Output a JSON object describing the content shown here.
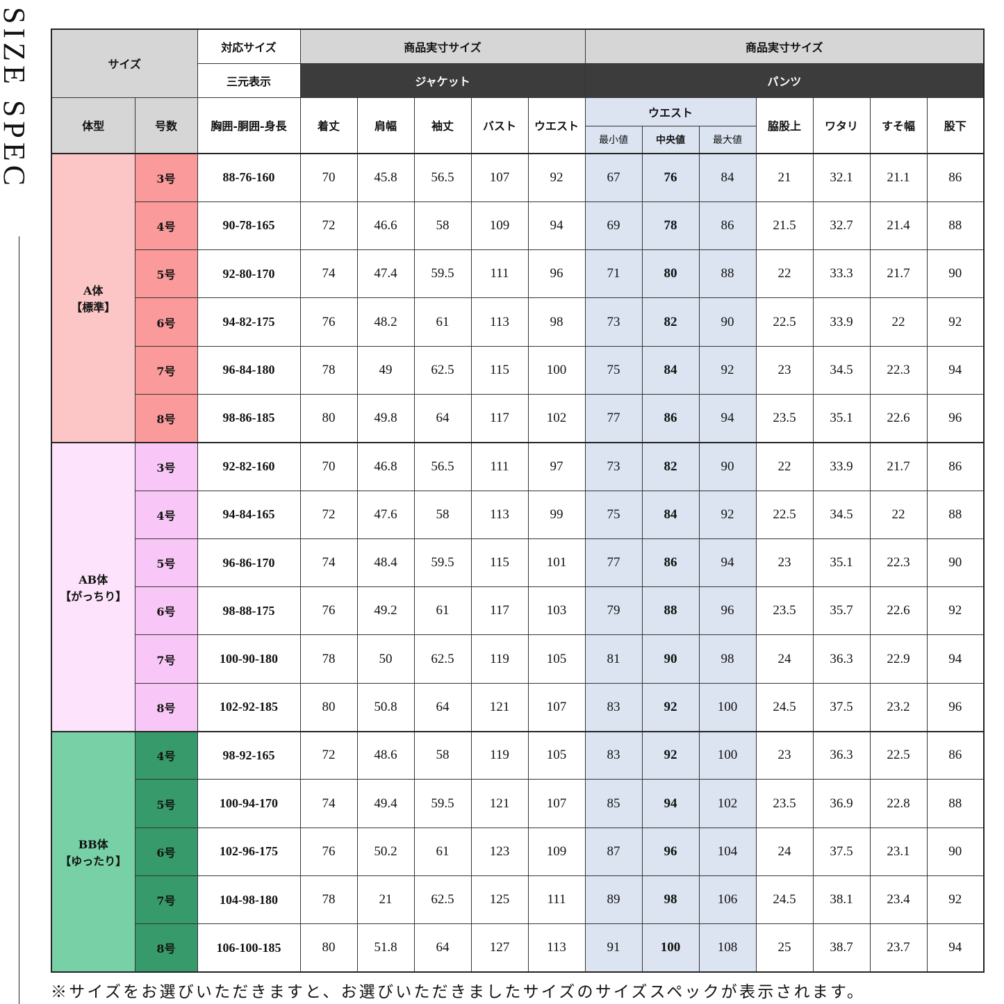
{
  "side_title": "SIZE SPEC",
  "header": {
    "size": "サイズ",
    "compat_size": "対応サイズ",
    "three_dim": "三元表示",
    "actual_size_jacket": "商品実寸サイズ",
    "actual_size_pants": "商品実寸サイズ",
    "jacket": "ジャケット",
    "pants": "パンツ",
    "body_type": "体型",
    "size_no": "号数",
    "chest_waist_height": "胸囲-胴囲-身長",
    "jacket_cols": [
      "着丈",
      "肩幅",
      "袖丈",
      "バスト",
      "ウエスト"
    ],
    "waist": "ウエスト",
    "waist_sub": [
      "最小値",
      "中央値",
      "最大値"
    ],
    "pants_cols": [
      "脇股上",
      "ワタリ",
      "すそ幅",
      "股下"
    ]
  },
  "colors": {
    "header_gray": "#d6d6d6",
    "header_dark": "#3c3c3c",
    "waist_blue": "#dce4f2"
  },
  "groups": [
    {
      "name": "A体",
      "sub": "【標準】",
      "bg": "#fcc6c6",
      "size_bg": "#fa9a9a",
      "rows": [
        {
          "size": "3号",
          "three": "88-76-160",
          "v": [
            "70",
            "45.8",
            "56.5",
            "107",
            "92",
            "67",
            "76",
            "84",
            "21",
            "32.1",
            "21.1",
            "86"
          ]
        },
        {
          "size": "4号",
          "three": "90-78-165",
          "v": [
            "72",
            "46.6",
            "58",
            "109",
            "94",
            "69",
            "78",
            "86",
            "21.5",
            "32.7",
            "21.4",
            "88"
          ]
        },
        {
          "size": "5号",
          "three": "92-80-170",
          "v": [
            "74",
            "47.4",
            "59.5",
            "111",
            "96",
            "71",
            "80",
            "88",
            "22",
            "33.3",
            "21.7",
            "90"
          ]
        },
        {
          "size": "6号",
          "three": "94-82-175",
          "v": [
            "76",
            "48.2",
            "61",
            "113",
            "98",
            "73",
            "82",
            "90",
            "22.5",
            "33.9",
            "22",
            "92"
          ]
        },
        {
          "size": "7号",
          "three": "96-84-180",
          "v": [
            "78",
            "49",
            "62.5",
            "115",
            "100",
            "75",
            "84",
            "92",
            "23",
            "34.5",
            "22.3",
            "94"
          ]
        },
        {
          "size": "8号",
          "three": "98-86-185",
          "v": [
            "80",
            "49.8",
            "64",
            "117",
            "102",
            "77",
            "86",
            "94",
            "23.5",
            "35.1",
            "22.6",
            "96"
          ]
        }
      ]
    },
    {
      "name": "AB体",
      "sub": "【がっちり】",
      "bg": "#fde3fb",
      "size_bg": "#f9c7f7",
      "rows": [
        {
          "size": "3号",
          "three": "92-82-160",
          "v": [
            "70",
            "46.8",
            "56.5",
            "111",
            "97",
            "73",
            "82",
            "90",
            "22",
            "33.9",
            "21.7",
            "86"
          ]
        },
        {
          "size": "4号",
          "three": "94-84-165",
          "v": [
            "72",
            "47.6",
            "58",
            "113",
            "99",
            "75",
            "84",
            "92",
            "22.5",
            "34.5",
            "22",
            "88"
          ]
        },
        {
          "size": "5号",
          "three": "96-86-170",
          "v": [
            "74",
            "48.4",
            "59.5",
            "115",
            "101",
            "77",
            "86",
            "94",
            "23",
            "35.1",
            "22.3",
            "90"
          ]
        },
        {
          "size": "6号",
          "three": "98-88-175",
          "v": [
            "76",
            "49.2",
            "61",
            "117",
            "103",
            "79",
            "88",
            "96",
            "23.5",
            "35.7",
            "22.6",
            "92"
          ]
        },
        {
          "size": "7号",
          "three": "100-90-180",
          "v": [
            "78",
            "50",
            "62.5",
            "119",
            "105",
            "81",
            "90",
            "98",
            "24",
            "36.3",
            "22.9",
            "94"
          ]
        },
        {
          "size": "8号",
          "three": "102-92-185",
          "v": [
            "80",
            "50.8",
            "64",
            "121",
            "107",
            "83",
            "92",
            "100",
            "24.5",
            "37.5",
            "23.2",
            "96"
          ]
        }
      ]
    },
    {
      "name": "BB体",
      "sub": "【ゆったり】",
      "bg": "#78d1a6",
      "size_bg": "#379a6a",
      "rows": [
        {
          "size": "4号",
          "three": "98-92-165",
          "v": [
            "72",
            "48.6",
            "58",
            "119",
            "105",
            "83",
            "92",
            "100",
            "23",
            "36.3",
            "22.5",
            "86"
          ]
        },
        {
          "size": "5号",
          "three": "100-94-170",
          "v": [
            "74",
            "49.4",
            "59.5",
            "121",
            "107",
            "85",
            "94",
            "102",
            "23.5",
            "36.9",
            "22.8",
            "88"
          ]
        },
        {
          "size": "6号",
          "three": "102-96-175",
          "v": [
            "76",
            "50.2",
            "61",
            "123",
            "109",
            "87",
            "96",
            "104",
            "24",
            "37.5",
            "23.1",
            "90"
          ]
        },
        {
          "size": "7号",
          "three": "104-98-180",
          "v": [
            "78",
            "21",
            "62.5",
            "125",
            "111",
            "89",
            "98",
            "106",
            "24.5",
            "38.1",
            "23.4",
            "92"
          ]
        },
        {
          "size": "8号",
          "three": "106-100-185",
          "v": [
            "80",
            "51.8",
            "64",
            "127",
            "113",
            "91",
            "100",
            "108",
            "25",
            "38.7",
            "23.7",
            "94"
          ]
        }
      ]
    }
  ],
  "footer_note": "※サイズをお選びいただきますと、お選びいただきましたサイズのサイズスペックが表示されます。"
}
